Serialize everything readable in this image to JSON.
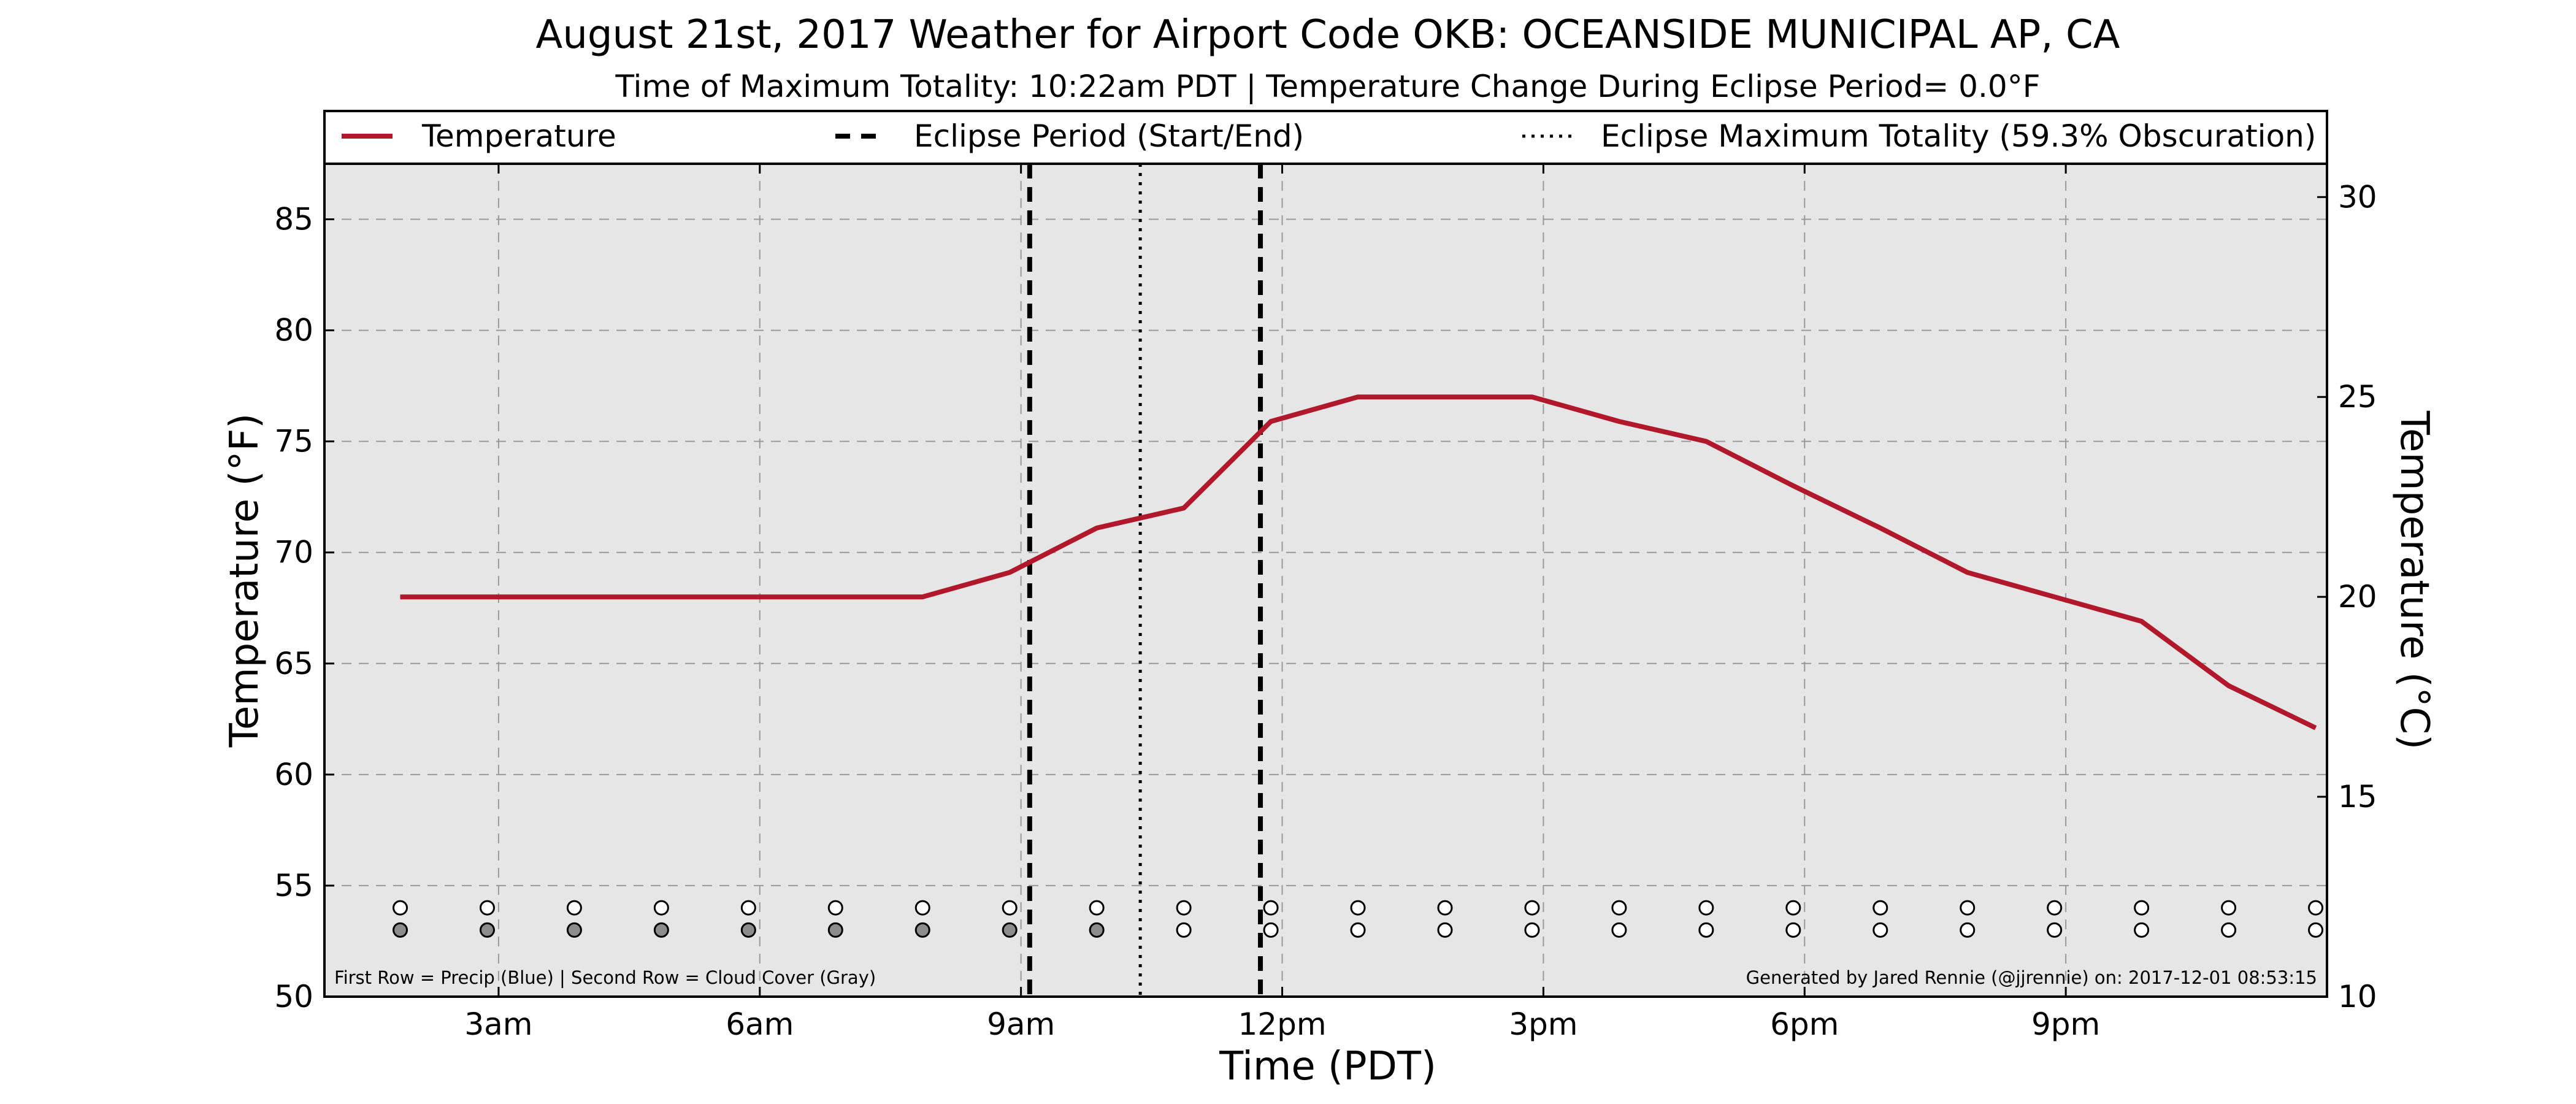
{
  "chart_data": {
    "type": "line",
    "title": "August 21st, 2017 Weather for Airport Code OKB: OCEANSIDE MUNICIPAL AP, CA",
    "subtitle": "Time of Maximum Totality: 10:22am PDT | Temperature Change During Eclipse Period= 0.0°F",
    "xlabel": "Time (PDT)",
    "ylabel_left": "Temperature (°F)",
    "ylabel_right": "Temperature (°C)",
    "x_unit": "hours after midnight (PDT)",
    "xlim": [
      1.0,
      24.0
    ],
    "ylim": [
      50,
      87.5
    ],
    "ylim_right": [
      10,
      30.833
    ],
    "x_ticks": [
      {
        "value": 3,
        "label": "3am"
      },
      {
        "value": 6,
        "label": "6am"
      },
      {
        "value": 9,
        "label": "9am"
      },
      {
        "value": 12,
        "label": "12pm"
      },
      {
        "value": 15,
        "label": "3pm"
      },
      {
        "value": 18,
        "label": "6pm"
      },
      {
        "value": 21,
        "label": "9pm"
      }
    ],
    "y_ticks_left": [
      50,
      55,
      60,
      65,
      70,
      75,
      80,
      85
    ],
    "y_ticks_right": [
      10,
      15,
      20,
      25,
      30
    ],
    "grid": true,
    "legend_position": "top, spanning full width",
    "series": [
      {
        "name": "Temperature",
        "color": "#b2182b",
        "x": [
          1.87,
          2.87,
          3.87,
          4.87,
          5.87,
          6.87,
          7.87,
          8.87,
          9.87,
          10.87,
          11.87,
          12.87,
          13.87,
          14.87,
          15.87,
          16.87,
          17.87,
          18.87,
          19.87,
          20.87,
          21.87,
          22.87,
          23.87
        ],
        "y": [
          68,
          68,
          68,
          68,
          68,
          68,
          68,
          69.1,
          71.1,
          72,
          75.9,
          77,
          77,
          77,
          75.9,
          75,
          73,
          71.1,
          69.1,
          68,
          66.9,
          64,
          62.1
        ]
      }
    ],
    "eclipse": {
      "legend_period": "Eclipse Period (Start/End)",
      "legend_max": "Eclipse Maximum Totality (59.3% Obscuration)",
      "start": 9.1,
      "end": 11.75,
      "max": 10.37
    },
    "indicator_rows": {
      "hours": [
        1.87,
        2.87,
        3.87,
        4.87,
        5.87,
        6.87,
        7.87,
        8.87,
        9.87,
        10.87,
        11.87,
        12.87,
        13.87,
        14.87,
        15.87,
        16.87,
        17.87,
        18.87,
        19.87,
        20.87,
        21.87,
        22.87,
        23.87
      ],
      "precip_level": 54,
      "cloud_level": 53,
      "precip": [
        0,
        0,
        0,
        0,
        0,
        0,
        0,
        0,
        0,
        0,
        0,
        0,
        0,
        0,
        0,
        0,
        0,
        0,
        0,
        0,
        0,
        0,
        0
      ],
      "cloud_cover": [
        1,
        1,
        1,
        1,
        1,
        1,
        1,
        1,
        1,
        0,
        0,
        0,
        0,
        0,
        0,
        0,
        0,
        0,
        0,
        0,
        0,
        0,
        0
      ],
      "precip_color": "#2166ac",
      "cloud_color": "#8c8c8c",
      "empty_color": "#ffffff"
    },
    "footnote_left": "First Row = Precip (Blue) | Second Row = Cloud Cover (Gray)",
    "footnote_right": "Generated by Jared Rennie (@jjrennie) on: 2017-12-01 08:53:15",
    "colors": {
      "plot_background": "#e6e6e6",
      "grid": "#999999",
      "eclipse_lines": "#000000"
    }
  }
}
